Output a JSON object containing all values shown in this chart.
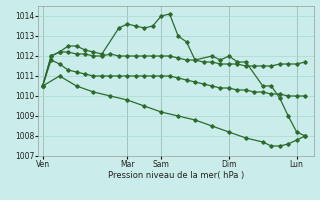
{
  "xlabel": "Pression niveau de la mer( hPa )",
  "background_color": "#caecea",
  "grid_color": "#a8d8d0",
  "line_color": "#2d6b2d",
  "ylim": [
    1007.0,
    1014.5
  ],
  "yticks": [
    1007,
    1008,
    1009,
    1010,
    1011,
    1012,
    1013,
    1014
  ],
  "day_labels": [
    "Ven",
    "Mar",
    "Sam",
    "Dim",
    "Lun"
  ],
  "day_x": [
    0,
    10,
    14,
    22,
    30
  ],
  "xlim": [
    -0.5,
    32
  ],
  "line1_x": [
    0,
    1,
    2,
    3,
    4,
    5,
    6,
    7,
    9,
    10,
    11,
    12,
    13,
    14,
    15,
    16,
    17,
    18,
    20,
    21,
    22,
    23,
    24,
    26,
    27,
    28,
    29,
    30,
    31
  ],
  "line1_y": [
    1010.5,
    1012.0,
    1012.2,
    1012.5,
    1012.5,
    1012.3,
    1012.2,
    1012.1,
    1013.4,
    1013.6,
    1013.5,
    1013.4,
    1013.5,
    1014.0,
    1014.1,
    1013.0,
    1012.7,
    1011.8,
    1012.0,
    1011.8,
    1012.0,
    1011.7,
    1011.7,
    1010.5,
    1010.5,
    1009.9,
    1009.0,
    1008.2,
    1008.0
  ],
  "line2_x": [
    0,
    1,
    2,
    3,
    4,
    5,
    6,
    7,
    8,
    9,
    10,
    11,
    12,
    13,
    14,
    15,
    16,
    17,
    18,
    19,
    20,
    21,
    22,
    23,
    24,
    25,
    26,
    27,
    28,
    29,
    30,
    31
  ],
  "line2_y": [
    1010.5,
    1012.0,
    1012.2,
    1012.2,
    1012.1,
    1012.1,
    1012.0,
    1012.0,
    1012.1,
    1012.0,
    1012.0,
    1012.0,
    1012.0,
    1012.0,
    1012.0,
    1012.0,
    1011.9,
    1011.8,
    1011.8,
    1011.7,
    1011.7,
    1011.6,
    1011.6,
    1011.6,
    1011.5,
    1011.5,
    1011.5,
    1011.5,
    1011.6,
    1011.6,
    1011.6,
    1011.7
  ],
  "line3_x": [
    0,
    1,
    2,
    3,
    4,
    5,
    6,
    7,
    8,
    9,
    10,
    11,
    12,
    13,
    14,
    15,
    16,
    17,
    18,
    19,
    20,
    21,
    22,
    23,
    24,
    25,
    26,
    27,
    28,
    29,
    30,
    31
  ],
  "line3_y": [
    1010.5,
    1011.8,
    1011.6,
    1011.3,
    1011.2,
    1011.1,
    1011.0,
    1011.0,
    1011.0,
    1011.0,
    1011.0,
    1011.0,
    1011.0,
    1011.0,
    1011.0,
    1011.0,
    1010.9,
    1010.8,
    1010.7,
    1010.6,
    1010.5,
    1010.4,
    1010.4,
    1010.3,
    1010.3,
    1010.2,
    1010.2,
    1010.1,
    1010.1,
    1010.0,
    1010.0,
    1010.0
  ],
  "line4_x": [
    0,
    2,
    4,
    6,
    8,
    10,
    12,
    14,
    16,
    18,
    20,
    22,
    24,
    26,
    27,
    28,
    29,
    30,
    31
  ],
  "line4_y": [
    1010.5,
    1011.0,
    1010.5,
    1010.2,
    1010.0,
    1009.8,
    1009.5,
    1009.2,
    1009.0,
    1008.8,
    1008.5,
    1008.2,
    1007.9,
    1007.7,
    1007.5,
    1007.5,
    1007.6,
    1007.8,
    1008.0
  ]
}
